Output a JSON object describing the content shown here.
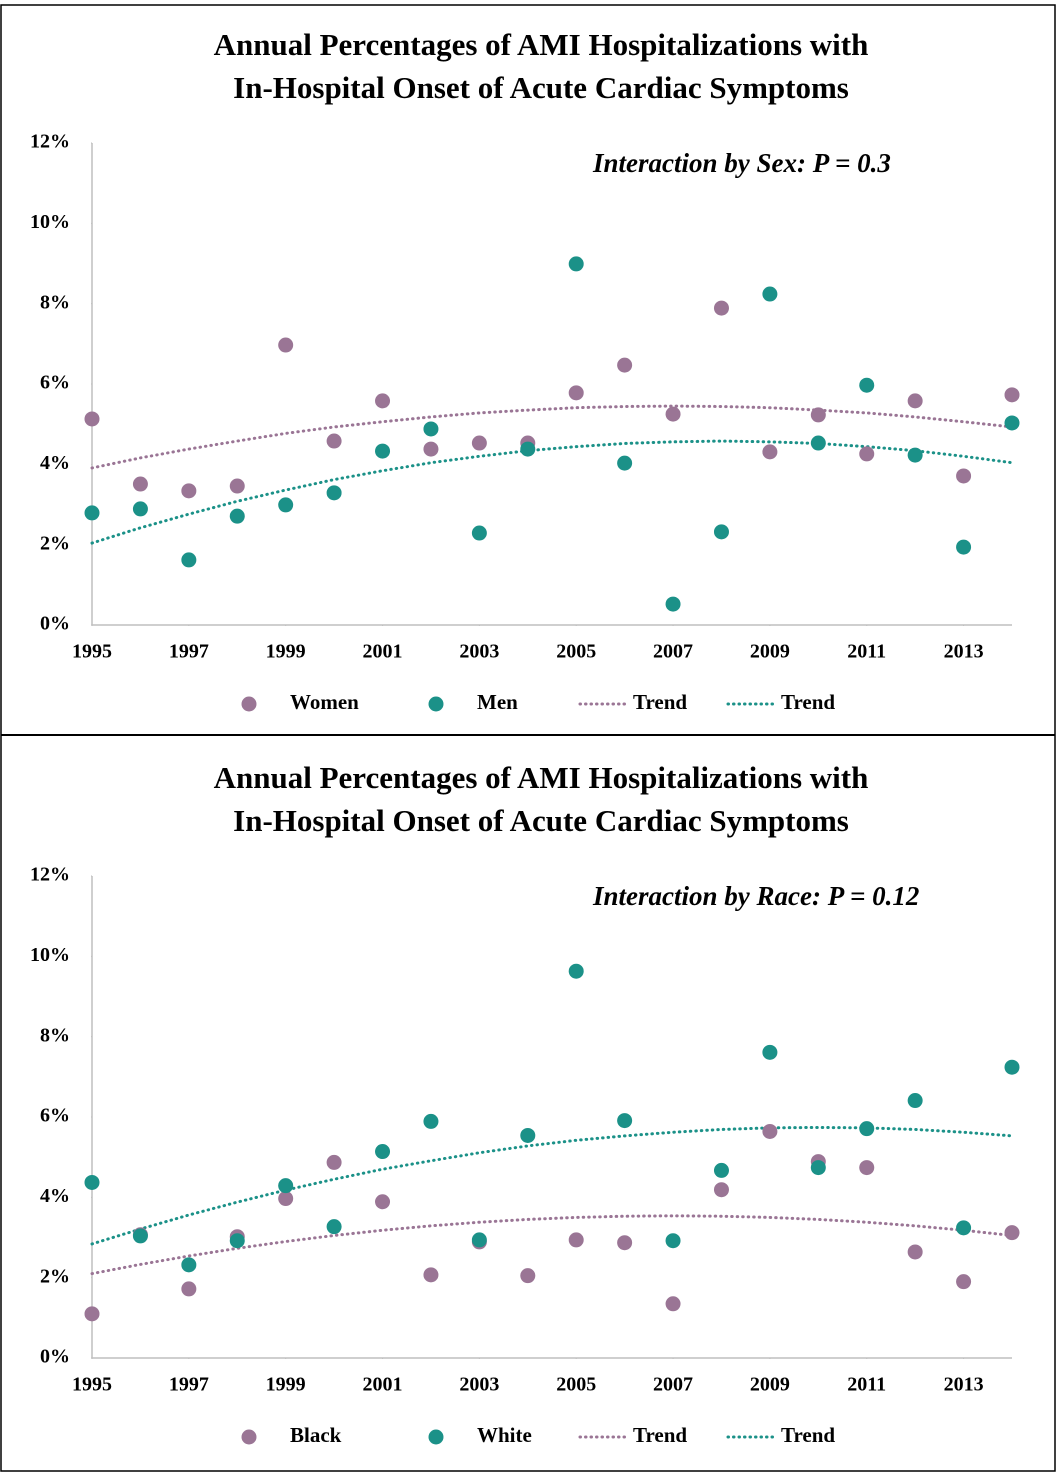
{
  "chart_data": [
    {
      "type": "scatter",
      "title": [
        "Annual Percentages of AMI Hospitalizations with",
        "In-Hospital Onset of Acute Cardiac Symptoms"
      ],
      "annotation": "Interaction by Sex: P = 0.3",
      "x": [
        1995,
        1996,
        1997,
        1998,
        1999,
        2000,
        2001,
        2002,
        2003,
        2004,
        2005,
        2006,
        2007,
        2008,
        2009,
        2010,
        2011,
        2012,
        2013,
        2014
      ],
      "xlim": [
        1995,
        2014
      ],
      "xticks": [
        1995,
        1997,
        1999,
        2001,
        2003,
        2005,
        2007,
        2009,
        2011,
        2013
      ],
      "ylim": [
        0,
        12
      ],
      "yticks": [
        {
          "value": 0,
          "label": "0%"
        },
        {
          "value": 2,
          "label": "2%"
        },
        {
          "value": 4,
          "label": "4%"
        },
        {
          "value": 6,
          "label": "6%"
        },
        {
          "value": 8,
          "label": "8%"
        },
        {
          "value": 10,
          "label": "10%"
        },
        {
          "value": 12,
          "label": "12%"
        }
      ],
      "series": [
        {
          "name": "Women",
          "mode": "markers",
          "color": "#9a7595",
          "values": [
            5.13,
            3.51,
            3.34,
            3.46,
            6.97,
            4.58,
            5.58,
            4.38,
            4.53,
            4.53,
            5.78,
            6.47,
            5.25,
            7.89,
            4.31,
            5.23,
            4.26,
            5.58,
            3.71,
            5.73
          ]
        },
        {
          "name": "Men",
          "mode": "markers",
          "color": "#1b9188",
          "values": [
            2.79,
            2.89,
            1.62,
            2.71,
            2.99,
            3.29,
            4.33,
            4.88,
            2.29,
            4.38,
            8.99,
            4.03,
            0.52,
            2.32,
            8.24,
            4.53,
            5.97,
            4.23,
            1.94,
            5.03
          ]
        },
        {
          "name": "Trend",
          "mode": "dotted",
          "color": "#9a7595",
          "values": [
            3.91,
            4.16,
            4.38,
            4.58,
            4.77,
            4.93,
            5.06,
            5.18,
            5.28,
            5.35,
            5.41,
            5.44,
            5.45,
            5.44,
            5.41,
            5.35,
            5.28,
            5.18,
            5.06,
            4.93
          ]
        },
        {
          "name": "Trend",
          "mode": "dotted",
          "color": "#1b9188",
          "values": [
            2.04,
            2.42,
            2.76,
            3.08,
            3.36,
            3.62,
            3.84,
            4.04,
            4.2,
            4.34,
            4.44,
            4.52,
            4.56,
            4.58,
            4.56,
            4.52,
            4.44,
            4.34,
            4.2,
            4.04
          ]
        }
      ]
    },
    {
      "type": "scatter",
      "title": [
        "Annual Percentages of AMI Hospitalizations with",
        "In-Hospital Onset of Acute Cardiac Symptoms"
      ],
      "annotation": "Interaction by Race: P = 0.12",
      "x": [
        1995,
        1996,
        1997,
        1998,
        1999,
        2000,
        2001,
        2002,
        2003,
        2004,
        2005,
        2006,
        2007,
        2008,
        2009,
        2010,
        2011,
        2012,
        2013,
        2014
      ],
      "xlim": [
        1995,
        2014
      ],
      "xticks": [
        1995,
        1997,
        1999,
        2001,
        2003,
        2005,
        2007,
        2009,
        2011,
        2013
      ],
      "ylim": [
        0,
        12
      ],
      "yticks": [
        {
          "value": 0,
          "label": "0%"
        },
        {
          "value": 2,
          "label": "2%"
        },
        {
          "value": 4,
          "label": "4%"
        },
        {
          "value": 6,
          "label": "6%"
        },
        {
          "value": 8,
          "label": "8%"
        },
        {
          "value": 10,
          "label": "10%"
        },
        {
          "value": 12,
          "label": "12%"
        }
      ],
      "series": [
        {
          "name": "Black",
          "mode": "markers",
          "color": "#9a7595",
          "values": [
            1.1,
            3.07,
            1.72,
            3.02,
            3.97,
            4.87,
            3.89,
            2.07,
            2.89,
            2.05,
            2.94,
            2.87,
            1.35,
            4.19,
            5.64,
            4.89,
            4.74,
            2.64,
            1.9,
            3.12
          ]
        },
        {
          "name": "White",
          "mode": "markers",
          "color": "#1b9188",
          "values": [
            4.37,
            3.04,
            2.32,
            2.92,
            4.29,
            3.27,
            5.14,
            5.89,
            2.94,
            5.54,
            9.63,
            5.91,
            2.92,
            4.67,
            7.61,
            4.74,
            5.71,
            6.41,
            3.24,
            7.24
          ]
        },
        {
          "name": "Trend",
          "mode": "dotted",
          "color": "#9a7595",
          "values": [
            2.1,
            2.33,
            2.54,
            2.73,
            2.9,
            3.05,
            3.18,
            3.29,
            3.38,
            3.45,
            3.5,
            3.53,
            3.54,
            3.53,
            3.5,
            3.45,
            3.38,
            3.29,
            3.18,
            3.05
          ]
        },
        {
          "name": "Trend",
          "mode": "dotted",
          "color": "#1b9188",
          "values": [
            2.84,
            3.21,
            3.56,
            3.88,
            4.18,
            4.45,
            4.7,
            4.91,
            5.11,
            5.28,
            5.42,
            5.53,
            5.62,
            5.69,
            5.73,
            5.74,
            5.73,
            5.69,
            5.62,
            5.53
          ]
        }
      ]
    }
  ]
}
